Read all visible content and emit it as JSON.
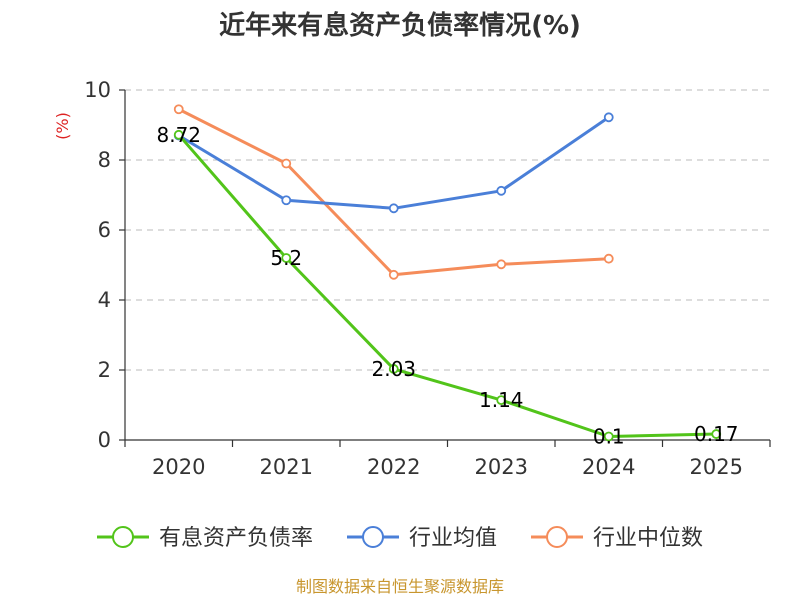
{
  "chart_data": {
    "type": "line",
    "title": "近年来有息资产负债率情况(%)",
    "ylabel": "(%)",
    "xlabel": "",
    "categories": [
      "2020",
      "2021",
      "2022",
      "2023",
      "2024",
      "2025"
    ],
    "ylim": [
      0,
      10
    ],
    "yticks": [
      "0",
      "2",
      "4",
      "6",
      "8",
      "10"
    ],
    "grid": true,
    "legend_position": "bottom",
    "series": [
      {
        "name": "有息资产负债率",
        "color": "#52c41a",
        "values": [
          8.72,
          5.2,
          2.03,
          1.14,
          0.1,
          0.17
        ],
        "labels": [
          "8.72",
          "5.2",
          "2.03",
          "1.14",
          "0.1",
          "0.17"
        ]
      },
      {
        "name": "行业均值",
        "color": "#4a7fd8",
        "values": [
          8.7,
          6.85,
          6.62,
          7.12,
          9.22,
          null
        ]
      },
      {
        "name": "行业中位数",
        "color": "#f58c5a",
        "values": [
          9.45,
          7.9,
          4.72,
          5.02,
          5.18,
          null
        ]
      }
    ],
    "source": "制图数据来自恒生聚源数据库"
  }
}
